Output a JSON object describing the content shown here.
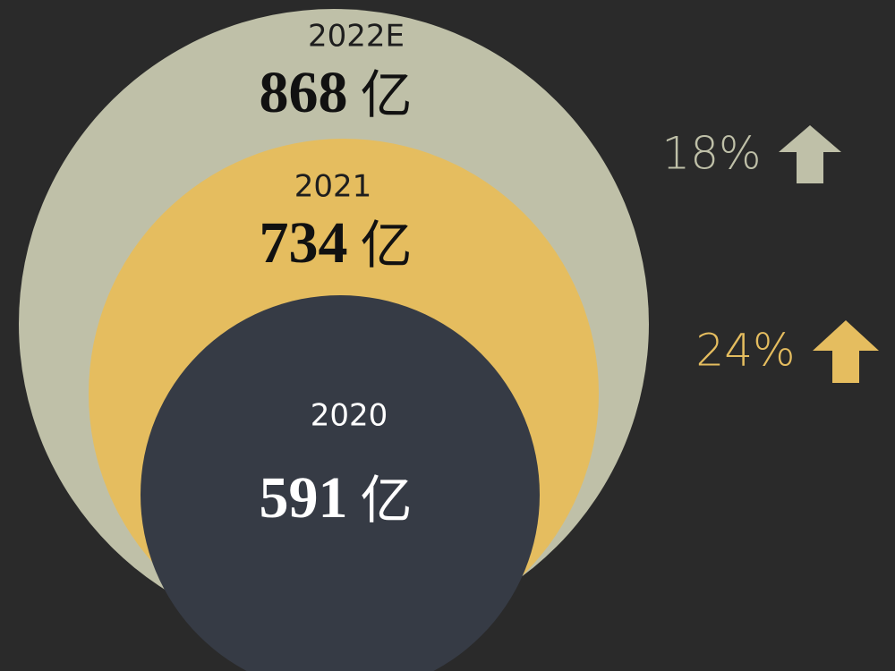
{
  "circles": [
    {
      "year": "2022E",
      "value": 868,
      "unit": "亿"
    },
    {
      "year": "2021",
      "value": 734,
      "unit": "亿"
    },
    {
      "year": "2020",
      "value": 591,
      "unit": "亿"
    }
  ],
  "growth": [
    {
      "label": "18%"
    },
    {
      "label": "24%"
    }
  ]
}
